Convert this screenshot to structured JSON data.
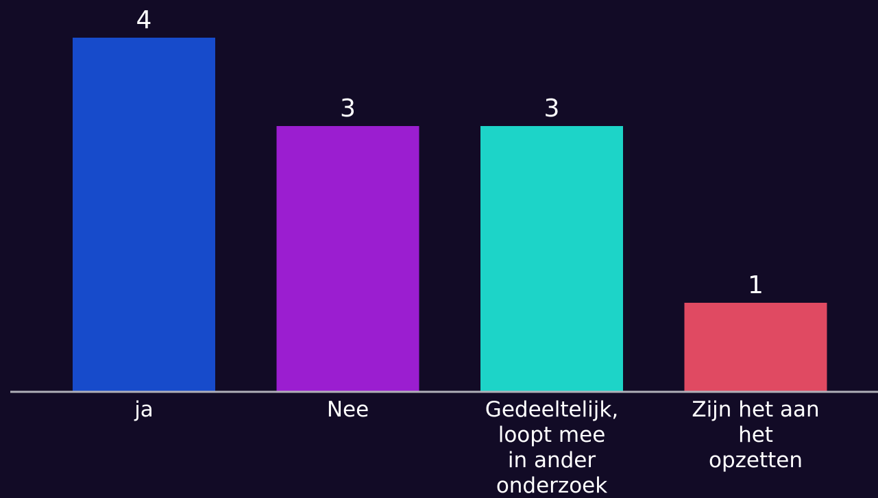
{
  "chart_data": {
    "type": "bar",
    "categories": [
      [
        "ja"
      ],
      [
        "Nee"
      ],
      [
        "Gedeeltelijk,",
        "loopt mee",
        "in ander",
        "onderzoek"
      ],
      [
        "Zijn het aan",
        "het",
        "opzetten"
      ]
    ],
    "values": [
      4,
      3,
      3,
      1
    ],
    "bar_colors": [
      "#174bcb",
      "#9b1ed0",
      "#1dd4c8",
      "#e04a62"
    ],
    "axis_color": "#b0b0b8",
    "background_color": "#120b26",
    "title": "",
    "xlabel": "",
    "ylabel": "",
    "ylim": [
      0,
      4
    ],
    "grid": false,
    "legend": "none"
  }
}
